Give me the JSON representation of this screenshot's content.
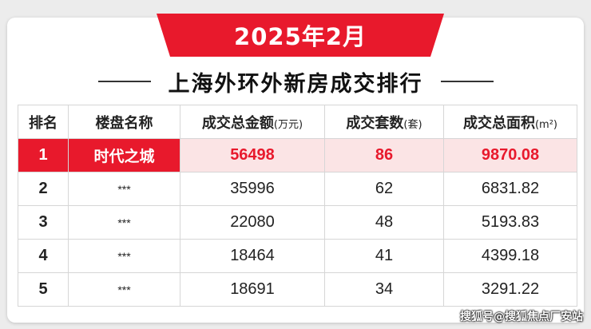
{
  "banner": {
    "title": "2025年2月"
  },
  "heading": {
    "text": "上海外环外新房成交排行"
  },
  "table": {
    "headers": [
      {
        "main": "排名",
        "unit": ""
      },
      {
        "main": "楼盘名称",
        "unit": ""
      },
      {
        "main": "成交总金额",
        "unit": "(万元)"
      },
      {
        "main": "成交套数",
        "unit": "(套)"
      },
      {
        "main": "成交总面积",
        "unit": "(m²)"
      }
    ],
    "rows": [
      {
        "rank": "1",
        "name": "时代之城",
        "amount": "56498",
        "units": "86",
        "area": "9870.08"
      },
      {
        "rank": "2",
        "name": "***",
        "amount": "35996",
        "units": "62",
        "area": "6831.82"
      },
      {
        "rank": "3",
        "name": "***",
        "amount": "22080",
        "units": "48",
        "area": "5193.83"
      },
      {
        "rank": "4",
        "name": "***",
        "amount": "18464",
        "units": "41",
        "area": "4399.18"
      },
      {
        "rank": "5",
        "name": "***",
        "amount": "18691",
        "units": "34",
        "area": "3291.22"
      }
    ]
  },
  "watermark": "搜狐号@搜狐焦点厂安站",
  "colors": {
    "accent": "#e8192c",
    "highlight_row": "#fbe4e5",
    "background": "#ececec"
  }
}
